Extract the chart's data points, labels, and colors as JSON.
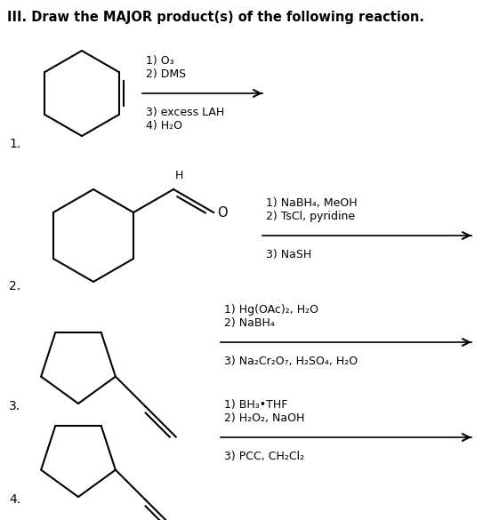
{
  "title": "III. Draw the MAJOR product(s) of the following reaction.",
  "title_fontsize": 10.5,
  "background_color": "#ffffff",
  "text_color": "#000000",
  "reactions": [
    {
      "number": "1.",
      "reagents_above": [
        "1) O₃",
        "2) DMS"
      ],
      "reagents_below": [
        "3) excess LAH",
        "4) H₂O"
      ]
    },
    {
      "number": "2.",
      "reagents_above": [
        "1) NaBH₄, MeOH",
        "2) TsCl, pyridine"
      ],
      "reagents_below": [
        "3) NaSH"
      ]
    },
    {
      "number": "3.",
      "reagents_above": [
        "1) Hg(OAc)₂, H₂O",
        "2) NaBH₄"
      ],
      "reagents_below": [
        "3) Na₂Cr₂O₇, H₂SO₄, H₂O"
      ]
    },
    {
      "number": "4.",
      "reagents_above": [
        "1) BH₃•THF",
        "2) H₂O₂, NaOH"
      ],
      "reagents_below": [
        "3) PCC, CH₂Cl₂"
      ]
    }
  ],
  "font_size_reagents": 9,
  "font_size_numbers": 10
}
